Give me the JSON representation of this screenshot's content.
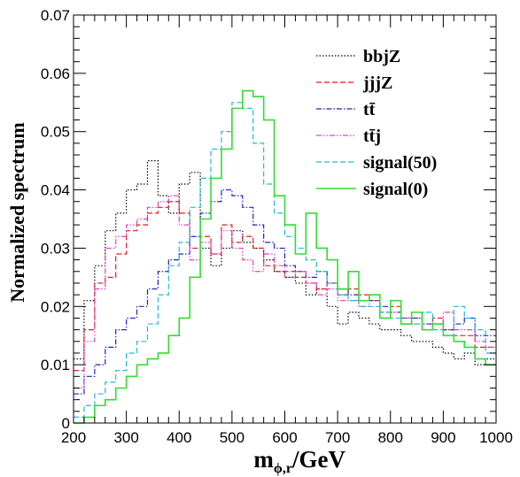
{
  "chart_data": {
    "type": "line",
    "style": "step-histogram",
    "xlabel": "m_{ϕ,r}/GeV",
    "xlabel_main": "m",
    "xlabel_sub": "ϕ,r",
    "xlabel_tail": "/GeV",
    "ylabel": "Normalized spectrum",
    "xlim": [
      200,
      1000
    ],
    "ylim": [
      0,
      0.07
    ],
    "x_ticks": [
      "200",
      "300",
      "400",
      "500",
      "600",
      "700",
      "800",
      "900",
      "1000"
    ],
    "y_ticks": [
      "0",
      "0.01",
      "0.02",
      "0.03",
      "0.04",
      "0.05",
      "0.06",
      "0.07"
    ],
    "bin_edges_start": 200,
    "bin_width": 20,
    "legend_position": "top-right",
    "grid": false,
    "series": [
      {
        "name": "bbjZ",
        "color": "#000000",
        "dash": "1.5,2",
        "values": [
          0.011,
          0.021,
          0.027,
          0.033,
          0.036,
          0.04,
          0.041,
          0.045,
          0.039,
          0.036,
          0.041,
          0.043,
          0.03,
          0.027,
          0.03,
          0.033,
          0.031,
          0.03,
          0.028,
          0.026,
          0.025,
          0.024,
          0.022,
          0.023,
          0.02,
          0.017,
          0.019,
          0.018,
          0.017,
          0.016,
          0.016,
          0.015,
          0.014,
          0.014,
          0.013,
          0.012,
          0.011,
          0.012,
          0.01,
          0.011
        ]
      },
      {
        "name": "jjjZ",
        "color": "#e41a1c",
        "dash": "6,3",
        "values": [
          0.009,
          0.016,
          0.024,
          0.025,
          0.029,
          0.033,
          0.034,
          0.036,
          0.037,
          0.038,
          0.036,
          0.03,
          0.032,
          0.029,
          0.034,
          0.031,
          0.032,
          0.03,
          0.027,
          0.026,
          0.026,
          0.025,
          0.024,
          0.023,
          0.024,
          0.022,
          0.023,
          0.022,
          0.021,
          0.019,
          0.02,
          0.017,
          0.018,
          0.016,
          0.018,
          0.016,
          0.015,
          0.015,
          0.013,
          0.013
        ]
      },
      {
        "name": "tt̄",
        "color": "#2020c0",
        "dash": "6,2,1.5,2",
        "values": [
          0.005,
          0.008,
          0.01,
          0.013,
          0.016,
          0.018,
          0.02,
          0.023,
          0.026,
          0.028,
          0.029,
          0.032,
          0.036,
          0.038,
          0.04,
          0.039,
          0.037,
          0.034,
          0.031,
          0.03,
          0.027,
          0.026,
          0.025,
          0.026,
          0.024,
          0.023,
          0.022,
          0.021,
          0.021,
          0.02,
          0.019,
          0.018,
          0.018,
          0.017,
          0.017,
          0.016,
          0.017,
          0.018,
          0.015,
          0.015
        ]
      },
      {
        "name": "tt̄j",
        "color": "#e040c0",
        "dash": "6,2,1.5,2,1.5,2",
        "values": [
          0.006,
          0.014,
          0.023,
          0.03,
          0.032,
          0.034,
          0.035,
          0.037,
          0.038,
          0.039,
          0.034,
          0.028,
          0.031,
          0.029,
          0.033,
          0.03,
          0.028,
          0.026,
          0.029,
          0.027,
          0.025,
          0.026,
          0.024,
          0.022,
          0.023,
          0.021,
          0.021,
          0.02,
          0.022,
          0.018,
          0.019,
          0.018,
          0.017,
          0.016,
          0.017,
          0.019,
          0.016,
          0.016,
          0.014,
          0.013
        ]
      },
      {
        "name": "signal(50)",
        "color": "#20b8e0",
        "dash": "6,3",
        "values": [
          0.001,
          0.003,
          0.005,
          0.007,
          0.009,
          0.012,
          0.014,
          0.017,
          0.022,
          0.027,
          0.031,
          0.037,
          0.042,
          0.047,
          0.05,
          0.055,
          0.054,
          0.048,
          0.041,
          0.036,
          0.032,
          0.03,
          0.028,
          0.026,
          0.024,
          0.022,
          0.021,
          0.02,
          0.02,
          0.019,
          0.018,
          0.017,
          0.017,
          0.019,
          0.016,
          0.015,
          0.02,
          0.018,
          0.016,
          0.012
        ]
      },
      {
        "name": "signal(0)",
        "color": "#33dd33",
        "dash": "",
        "values": [
          0.0,
          0.001,
          0.003,
          0.004,
          0.006,
          0.008,
          0.01,
          0.011,
          0.012,
          0.015,
          0.018,
          0.025,
          0.035,
          0.042,
          0.047,
          0.054,
          0.057,
          0.056,
          0.052,
          0.039,
          0.034,
          0.029,
          0.036,
          0.03,
          0.028,
          0.023,
          0.026,
          0.021,
          0.022,
          0.018,
          0.021,
          0.017,
          0.019,
          0.016,
          0.017,
          0.015,
          0.014,
          0.013,
          0.011,
          0.01
        ]
      }
    ]
  }
}
